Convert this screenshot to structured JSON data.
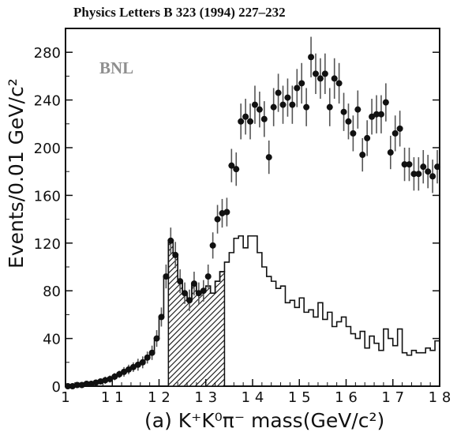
{
  "header": {
    "citation": "Physics Letters B 323 (1994) 227–232"
  },
  "watermark": {
    "label": "BNL"
  },
  "colors": {
    "ink": "#111111",
    "label_gray": "#8f8f8f",
    "background": "#ffffff"
  },
  "chart_data": {
    "type": "scatter",
    "title": "",
    "xlabel": "(a) K⁺K⁰π⁻ mass(GeV/c²)",
    "ylabel": "Events/0.01 GeV/c²",
    "xlim": [
      1.0,
      1.8
    ],
    "ylim": [
      0,
      300
    ],
    "x_ticks": [
      {
        "value": 1.0,
        "label": "1"
      },
      {
        "value": 1.1,
        "label": "1 1"
      },
      {
        "value": 1.2,
        "label": "1 2"
      },
      {
        "value": 1.3,
        "label": "1 3"
      },
      {
        "value": 1.4,
        "label": "1 4"
      },
      {
        "value": 1.5,
        "label": "1 5"
      },
      {
        "value": 1.6,
        "label": "1 6"
      },
      {
        "value": 1.7,
        "label": "1 7"
      },
      {
        "value": 1.8,
        "label": "1 8"
      }
    ],
    "y_ticks": [
      {
        "value": 0,
        "label": "0"
      },
      {
        "value": 40,
        "label": "40"
      },
      {
        "value": 80,
        "label": "80"
      },
      {
        "value": 120,
        "label": "120"
      },
      {
        "value": 160,
        "label": "160"
      },
      {
        "value": 200,
        "label": "200"
      },
      {
        "value": 240,
        "label": "240"
      },
      {
        "value": 280,
        "label": "280"
      }
    ],
    "grid": false,
    "series": [
      {
        "kind": "points_with_errors",
        "x": [
          1.005,
          1.015,
          1.025,
          1.035,
          1.045,
          1.055,
          1.065,
          1.075,
          1.085,
          1.095,
          1.105,
          1.115,
          1.125,
          1.135,
          1.145,
          1.155,
          1.165,
          1.175,
          1.185,
          1.195,
          1.205,
          1.215,
          1.225,
          1.235,
          1.245,
          1.255,
          1.265,
          1.275,
          1.285,
          1.295,
          1.305,
          1.315,
          1.325,
          1.335,
          1.345,
          1.355,
          1.365,
          1.375,
          1.385,
          1.395,
          1.405,
          1.415,
          1.425,
          1.435,
          1.445,
          1.455,
          1.465,
          1.475,
          1.485,
          1.495,
          1.505,
          1.515,
          1.525,
          1.535,
          1.545,
          1.555,
          1.565,
          1.575,
          1.585,
          1.595,
          1.605,
          1.615,
          1.625,
          1.635,
          1.645,
          1.655,
          1.665,
          1.675,
          1.685,
          1.695,
          1.705,
          1.715,
          1.725,
          1.735,
          1.745,
          1.755,
          1.765,
          1.775,
          1.785,
          1.795
        ],
        "y": [
          0,
          0,
          1,
          1,
          2,
          2,
          3,
          4,
          5,
          6,
          8,
          10,
          12,
          14,
          16,
          18,
          20,
          24,
          28,
          40,
          58,
          92,
          122,
          110,
          88,
          78,
          72,
          86,
          78,
          80,
          92,
          118,
          140,
          145,
          146,
          185,
          182,
          222,
          226,
          222,
          236,
          232,
          224,
          192,
          234,
          246,
          236,
          242,
          236,
          250,
          254,
          234,
          276,
          262,
          258,
          262,
          234,
          258,
          254,
          230,
          222,
          212,
          232,
          194,
          208,
          226,
          228,
          228,
          238,
          196,
          212,
          216,
          186,
          186,
          178,
          178,
          184,
          180,
          176,
          184
        ],
        "err": [
          0,
          0,
          1,
          1,
          2,
          2,
          2,
          2,
          3,
          3,
          3,
          3,
          4,
          4,
          4,
          5,
          5,
          5,
          6,
          7,
          8,
          10,
          11,
          11,
          10,
          9,
          9,
          10,
          9,
          9,
          10,
          11,
          12,
          12,
          12,
          14,
          14,
          15,
          15,
          15,
          16,
          15,
          15,
          14,
          16,
          16,
          16,
          16,
          16,
          16,
          17,
          16,
          17,
          17,
          17,
          17,
          16,
          17,
          17,
          16,
          15,
          15,
          16,
          14,
          15,
          15,
          16,
          16,
          16,
          14,
          15,
          15,
          14,
          14,
          14,
          14,
          14,
          14,
          14,
          14
        ]
      },
      {
        "kind": "step_histogram",
        "x_edges": [
          1.0,
          1.01,
          1.02,
          1.03,
          1.04,
          1.05,
          1.06,
          1.07,
          1.08,
          1.09,
          1.1,
          1.11,
          1.12,
          1.13,
          1.14,
          1.15,
          1.16,
          1.17,
          1.18,
          1.19,
          1.2,
          1.21,
          1.22,
          1.23,
          1.24,
          1.25,
          1.26,
          1.27,
          1.28,
          1.29,
          1.3,
          1.31,
          1.32,
          1.33,
          1.34,
          1.35,
          1.36,
          1.37,
          1.38,
          1.39,
          1.4,
          1.41,
          1.42,
          1.43,
          1.44,
          1.45,
          1.46,
          1.47,
          1.48,
          1.49,
          1.5,
          1.51,
          1.52,
          1.53,
          1.54,
          1.55,
          1.56,
          1.57,
          1.58,
          1.59,
          1.6,
          1.61,
          1.62,
          1.63,
          1.64,
          1.65,
          1.66,
          1.67,
          1.68,
          1.69,
          1.7,
          1.71,
          1.72,
          1.73,
          1.74,
          1.75,
          1.76,
          1.77,
          1.78,
          1.79,
          1.8
        ],
        "values": [
          0,
          0,
          1,
          1,
          2,
          2,
          3,
          4,
          5,
          6,
          8,
          10,
          12,
          14,
          16,
          18,
          20,
          24,
          28,
          40,
          58,
          92,
          122,
          110,
          88,
          78,
          72,
          86,
          78,
          80,
          84,
          78,
          88,
          96,
          104,
          112,
          124,
          126,
          116,
          126,
          126,
          112,
          100,
          92,
          88,
          82,
          84,
          70,
          72,
          66,
          74,
          62,
          64,
          58,
          70,
          56,
          62,
          50,
          54,
          58,
          50,
          44,
          40,
          46,
          32,
          42,
          36,
          30,
          48,
          40,
          34,
          48,
          28,
          26,
          30,
          28,
          28,
          32,
          30,
          38
        ]
      },
      {
        "kind": "hatched_region",
        "x_range": [
          1.22,
          1.34
        ]
      }
    ]
  }
}
